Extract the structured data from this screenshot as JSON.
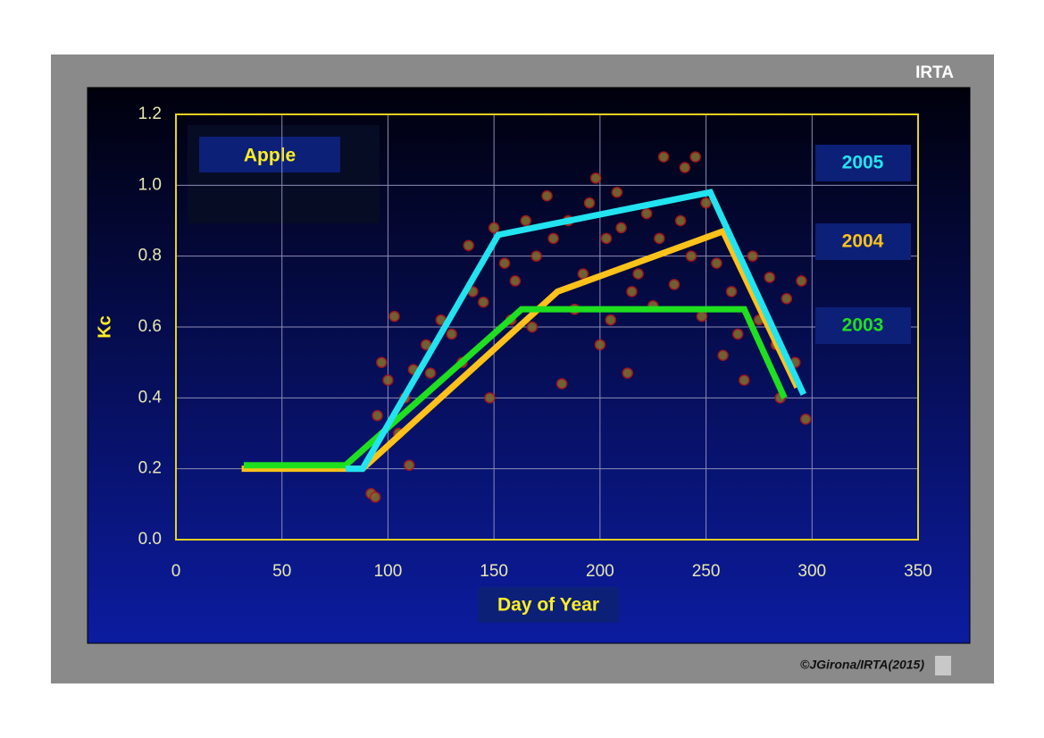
{
  "chart_data": {
    "type": "line",
    "brand": "IRTA",
    "credit": "©JGirona/IRTA(2015)",
    "title": "Apple",
    "x_label": "Day of Year",
    "y_label": "Kc",
    "xlim": [
      0,
      350
    ],
    "xticks": [
      0,
      50,
      100,
      150,
      200,
      250,
      300,
      350
    ],
    "ylim": [
      0,
      1.2
    ],
    "yticks": [
      {
        "value": 0,
        "label": "0.0"
      },
      0.2,
      0.4,
      0.6,
      0.8,
      {
        "value": 1,
        "label": "1.0"
      },
      1.2
    ],
    "grid": true,
    "series": [
      {
        "name": "2005",
        "color": "#22e4f0",
        "x": [
          80,
          88,
          152,
          252,
          296
        ],
        "values": [
          0.2,
          0.2,
          0.86,
          0.98,
          0.41
        ]
      },
      {
        "name": "2004",
        "color": "#ffc21a",
        "x": [
          31,
          88,
          180,
          258,
          293
        ],
        "values": [
          0.2,
          0.2,
          0.7,
          0.87,
          0.43
        ]
      },
      {
        "name": "2003",
        "color": "#1ee01e",
        "x": [
          32,
          80,
          163,
          268,
          287
        ],
        "values": [
          0.21,
          0.21,
          0.65,
          0.65,
          0.4
        ]
      }
    ],
    "points": {
      "color": "#7c6a30",
      "edge": "#b01818",
      "x": [
        92,
        94,
        95,
        97,
        100,
        103,
        105,
        108,
        110,
        112,
        118,
        120,
        125,
        130,
        135,
        138,
        140,
        145,
        148,
        150,
        155,
        158,
        160,
        165,
        168,
        170,
        175,
        178,
        182,
        185,
        188,
        192,
        195,
        198,
        200,
        203,
        205,
        208,
        210,
        213,
        215,
        218,
        222,
        225,
        228,
        230,
        235,
        238,
        240,
        243,
        245,
        248,
        250,
        255,
        258,
        262,
        265,
        268,
        272,
        275,
        280,
        283,
        285,
        288,
        292,
        295,
        297
      ],
      "values": [
        0.13,
        0.12,
        0.35,
        0.5,
        0.45,
        0.63,
        0.3,
        0.4,
        0.21,
        0.48,
        0.55,
        0.47,
        0.62,
        0.58,
        0.5,
        0.83,
        0.7,
        0.67,
        0.4,
        0.88,
        0.78,
        0.62,
        0.73,
        0.9,
        0.6,
        0.8,
        0.97,
        0.85,
        0.44,
        0.9,
        0.65,
        0.75,
        0.95,
        1.02,
        0.55,
        0.85,
        0.62,
        0.98,
        0.88,
        0.47,
        0.7,
        0.75,
        0.92,
        0.66,
        0.85,
        1.08,
        0.72,
        0.9,
        1.05,
        0.8,
        1.08,
        0.63,
        0.95,
        0.78,
        0.52,
        0.7,
        0.58,
        0.45,
        0.8,
        0.62,
        0.74,
        0.55,
        0.4,
        0.68,
        0.5,
        0.73,
        0.34
      ]
    }
  }
}
